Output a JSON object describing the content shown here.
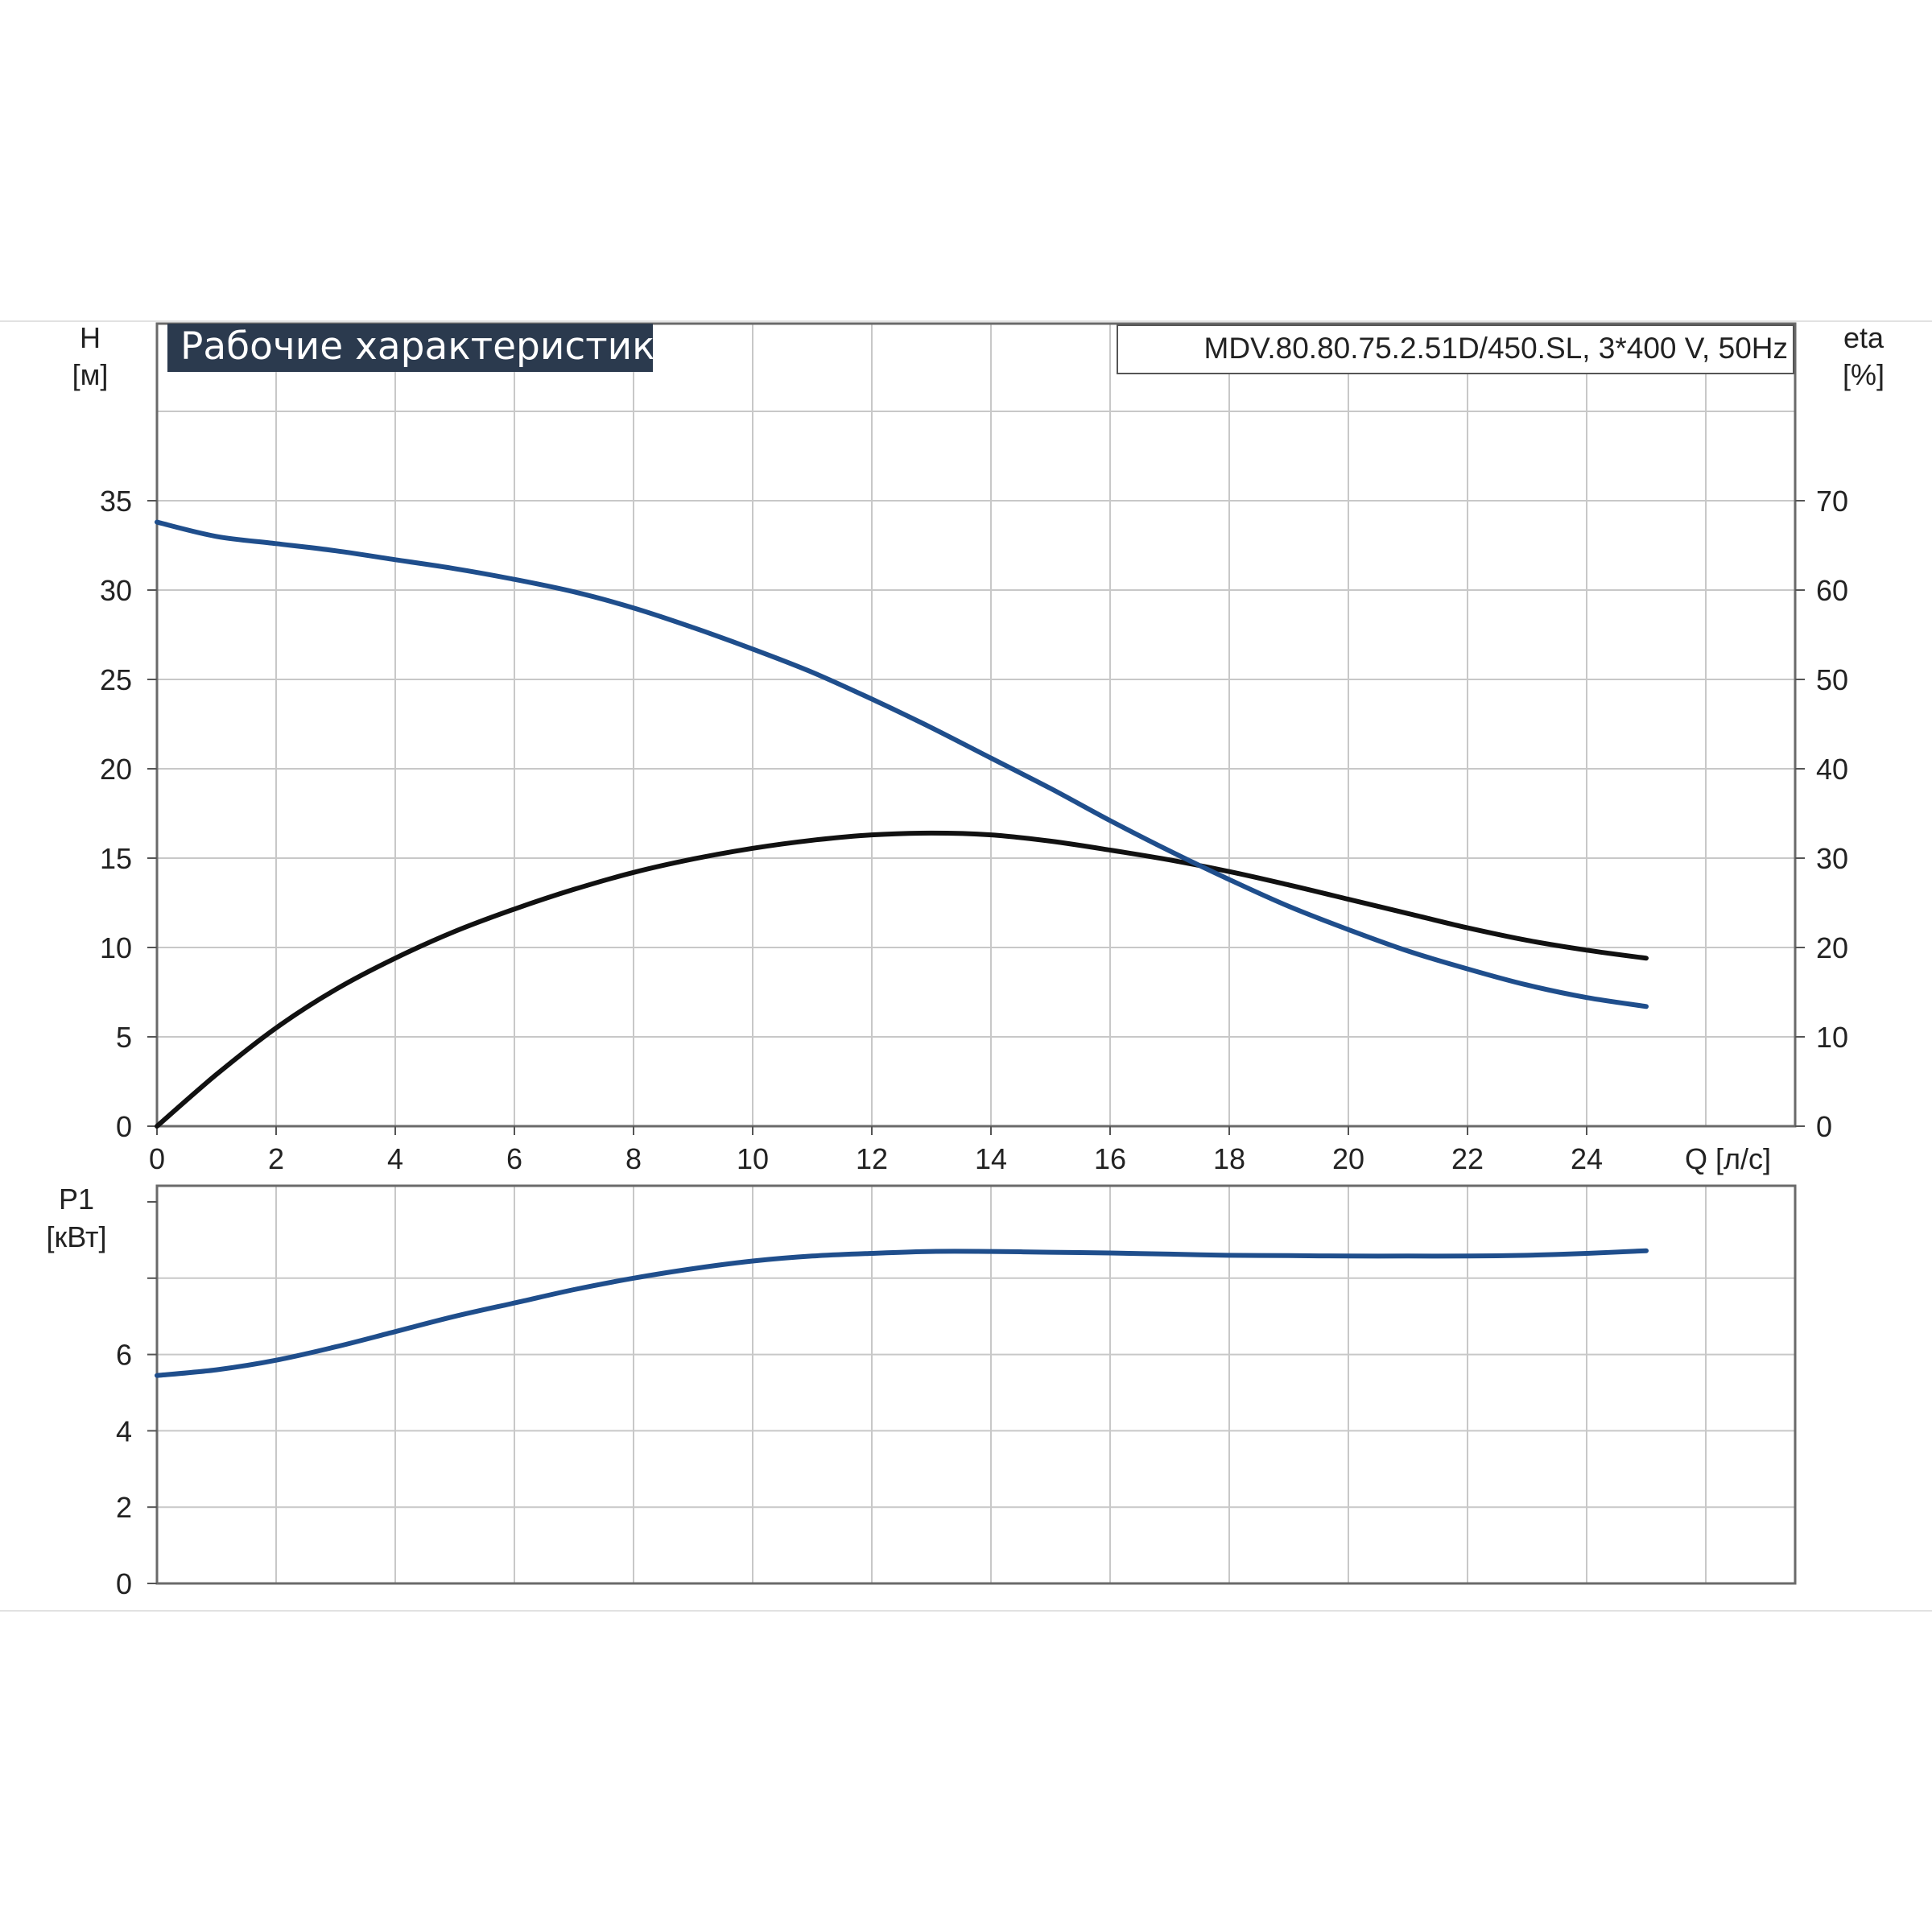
{
  "chart_data": [
    {
      "type": "line",
      "title": "Рабочие характеристики",
      "model_label": "MDV.80.80.75.2.51D/450.SL, 3*400 V, 50Hz",
      "xlabel": "Q [л/с]",
      "ylabel_left": [
        "H",
        "[м]"
      ],
      "ylabel_right": [
        "eta",
        "[%]"
      ],
      "xlim": [
        0,
        27.5
      ],
      "ylim_left": [
        0,
        35
      ],
      "ylim_right": [
        0,
        70
      ],
      "x_ticks": [
        "0",
        "2",
        "4",
        "6",
        "8",
        "10",
        "12",
        "14",
        "16",
        "18",
        "20",
        "22",
        "24"
      ],
      "y_ticks_left": [
        "0",
        "5",
        "10",
        "15",
        "20",
        "25",
        "30",
        "35"
      ],
      "y_ticks_right": [
        "0",
        "10",
        "20",
        "30",
        "40",
        "50",
        "60",
        "70"
      ],
      "grid": true,
      "series": [
        {
          "axis": "left",
          "color": "#1f4e8c",
          "x": [
            0,
            1,
            2,
            3,
            4,
            5,
            6,
            7,
            8,
            9,
            10,
            11,
            12,
            13,
            14,
            15,
            16,
            17,
            18,
            19,
            20,
            21,
            22,
            23,
            24,
            25
          ],
          "values": [
            33.8,
            33.0,
            32.6,
            32.2,
            31.7,
            31.2,
            30.6,
            29.9,
            29.0,
            27.9,
            26.7,
            25.4,
            23.9,
            22.3,
            20.6,
            18.9,
            17.1,
            15.4,
            13.8,
            12.3,
            11.0,
            9.8,
            8.8,
            7.9,
            7.2,
            6.7
          ]
        },
        {
          "axis": "right",
          "color": "#111111",
          "x": [
            0,
            1,
            2,
            3,
            4,
            5,
            6,
            7,
            8,
            9,
            10,
            11,
            12,
            13,
            14,
            15,
            16,
            17,
            18,
            19,
            20,
            21,
            22,
            23,
            24,
            25
          ],
          "values": [
            0,
            5.8,
            11.0,
            15.3,
            18.8,
            21.8,
            24.3,
            26.5,
            28.4,
            29.9,
            31.1,
            32.0,
            32.6,
            32.8,
            32.6,
            31.9,
            30.9,
            29.8,
            28.5,
            27.0,
            25.4,
            23.8,
            22.2,
            20.8,
            19.7,
            18.8
          ]
        }
      ]
    },
    {
      "type": "line",
      "xlim": [
        0,
        27.5
      ],
      "ylim": [
        0,
        10
      ],
      "ylabel": [
        "P1",
        "[кВт]"
      ],
      "y_ticks": [
        "0",
        "2",
        "4",
        "6"
      ],
      "grid": true,
      "series": [
        {
          "color": "#1f4e8c",
          "x": [
            0,
            1,
            2,
            3,
            4,
            5,
            6,
            7,
            8,
            9,
            10,
            11,
            12,
            13,
            14,
            15,
            16,
            17,
            18,
            19,
            20,
            21,
            22,
            23,
            24,
            25
          ],
          "values": [
            5.45,
            5.6,
            5.85,
            6.2,
            6.6,
            7.0,
            7.35,
            7.7,
            8.0,
            8.25,
            8.45,
            8.58,
            8.65,
            8.7,
            8.7,
            8.68,
            8.66,
            8.63,
            8.6,
            8.59,
            8.58,
            8.58,
            8.58,
            8.6,
            8.65,
            8.72
          ]
        }
      ]
    }
  ],
  "colors": {
    "title_box": "#2b3a4e",
    "grid": "#c8c8c8",
    "axis": "#555555",
    "pump_curve": "#1f4e8c",
    "efficiency_curve": "#111111"
  }
}
